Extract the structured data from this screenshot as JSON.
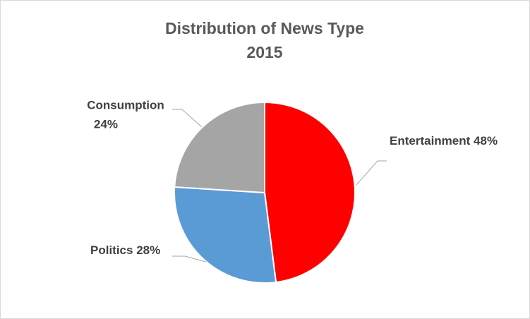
{
  "chart_data": {
    "type": "pie",
    "title": "Distribution of News Type",
    "subtitle": "2015",
    "categories": [
      "Entertainment",
      "Politics",
      "Consumption"
    ],
    "values": [
      48,
      28,
      24
    ],
    "value_labels": [
      "48%",
      "28%",
      "24%"
    ],
    "colors": [
      "#ff0000",
      "#5b9bd5",
      "#a5a5a5"
    ]
  }
}
